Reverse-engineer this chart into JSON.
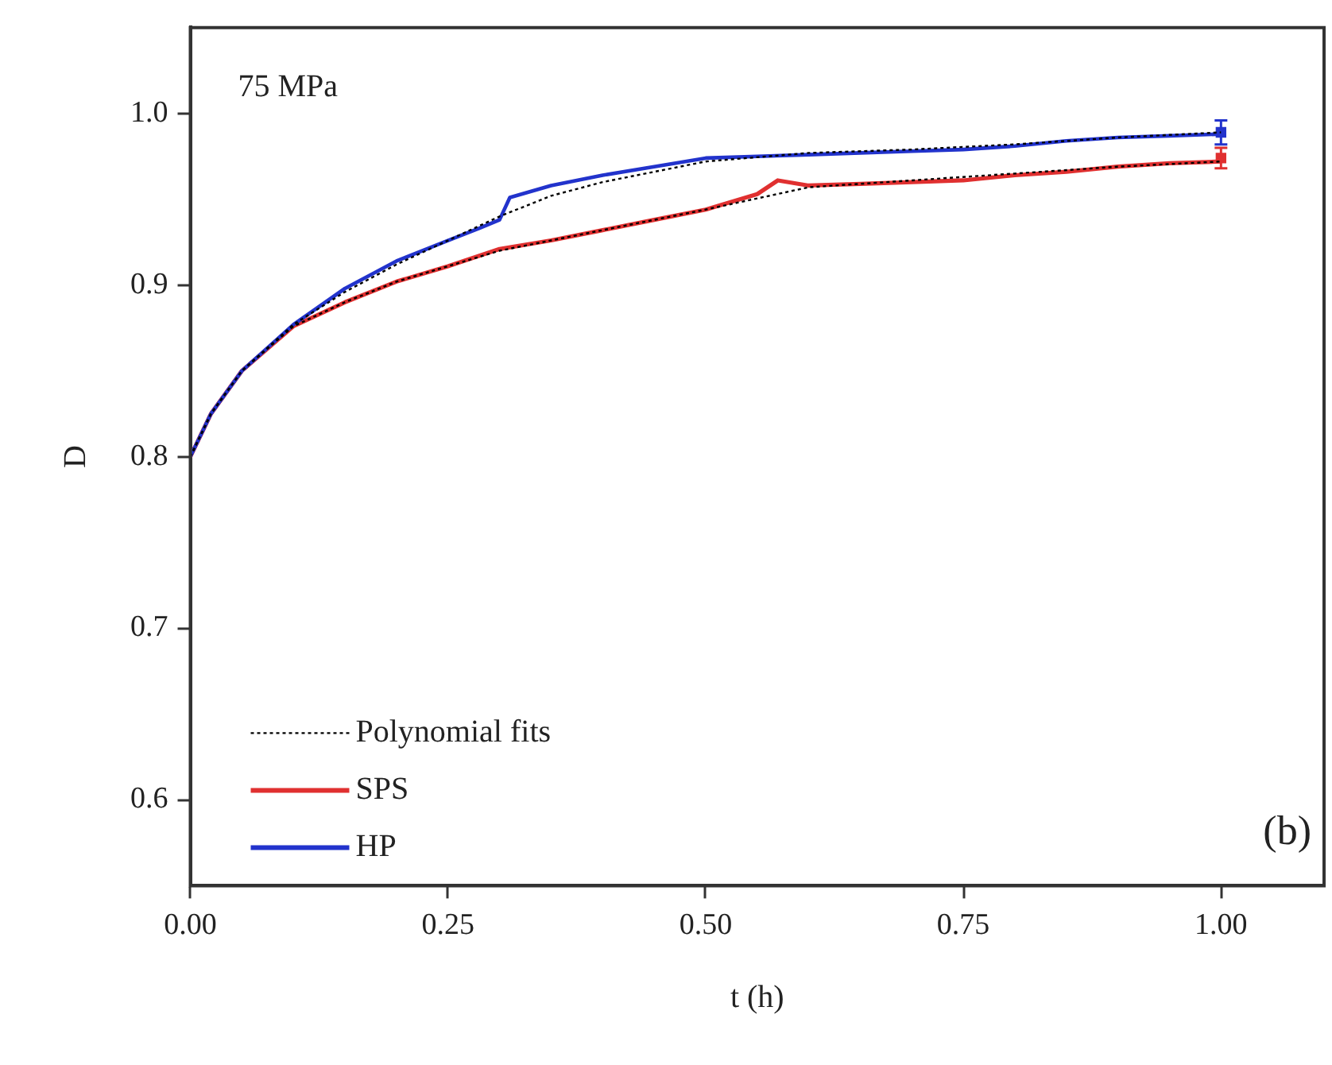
{
  "chart_data": {
    "type": "line",
    "xlabel": "t (h)",
    "ylabel": "D",
    "annotations": [
      "75 MPa",
      "(b)"
    ],
    "xlim": [
      0,
      1.1
    ],
    "ylim": [
      0.55,
      1.05
    ],
    "xticks": [
      {
        "value": 0,
        "label": "0.00"
      },
      0.25,
      {
        "value": 0.5,
        "label": "0.50"
      },
      0.75,
      {
        "value": 1,
        "label": "1.00"
      }
    ],
    "yticks": [
      0.6,
      0.7,
      0.8,
      0.9,
      {
        "value": 1,
        "label": "1.0"
      }
    ],
    "grid": false,
    "legend": "bottom left",
    "marker": "none",
    "series": [
      {
        "name": "Polynomial fits",
        "type": "line",
        "line_style": "dotted",
        "color": "#000000",
        "x": [
          0,
          0.02,
          0.05,
          0.1,
          0.15,
          0.2,
          0.25,
          0.3,
          0.35,
          0.4,
          0.5,
          0.6,
          0.7,
          0.8,
          0.9,
          1.0
        ],
        "values": [
          0.8,
          0.825,
          0.85,
          0.877,
          0.896,
          0.912,
          0.926,
          0.94,
          0.952,
          0.96,
          0.972,
          0.977,
          0.979,
          0.982,
          0.986,
          0.989
        ]
      },
      {
        "type": "line",
        "line_style": "dotted",
        "color": "#000000",
        "x": [
          0,
          0.02,
          0.05,
          0.1,
          0.15,
          0.2,
          0.25,
          0.3,
          0.35,
          0.4,
          0.5,
          0.6,
          0.7,
          0.8,
          0.9,
          1.0
        ],
        "values": [
          0.8,
          0.825,
          0.85,
          0.876,
          0.89,
          0.902,
          0.911,
          0.92,
          0.926,
          0.932,
          0.944,
          0.957,
          0.961,
          0.965,
          0.969,
          0.972
        ]
      },
      {
        "name": "SPS",
        "type": "line",
        "color": "#e03030",
        "x": [
          0,
          0.02,
          0.05,
          0.1,
          0.15,
          0.2,
          0.25,
          0.3,
          0.35,
          0.4,
          0.45,
          0.5,
          0.55,
          0.57,
          0.6,
          0.65,
          0.7,
          0.75,
          0.8,
          0.85,
          0.9,
          0.95,
          1.0
        ],
        "values": [
          0.8,
          0.825,
          0.85,
          0.876,
          0.89,
          0.902,
          0.911,
          0.921,
          0.926,
          0.932,
          0.938,
          0.944,
          0.953,
          0.961,
          0.958,
          0.959,
          0.96,
          0.961,
          0.964,
          0.966,
          0.969,
          0.971,
          0.972
        ]
      },
      {
        "name": "HP",
        "type": "line",
        "color": "#2233cc",
        "x": [
          0,
          0.02,
          0.05,
          0.1,
          0.15,
          0.2,
          0.25,
          0.28,
          0.3,
          0.31,
          0.35,
          0.4,
          0.45,
          0.5,
          0.55,
          0.6,
          0.65,
          0.7,
          0.75,
          0.8,
          0.85,
          0.9,
          0.95,
          1.0
        ],
        "values": [
          0.8,
          0.825,
          0.85,
          0.877,
          0.898,
          0.914,
          0.926,
          0.933,
          0.938,
          0.951,
          0.958,
          0.964,
          0.969,
          0.974,
          0.975,
          0.976,
          0.977,
          0.978,
          0.979,
          0.981,
          0.984,
          0.986,
          0.987,
          0.988
        ]
      },
      {
        "type": "scatter",
        "marker": "square",
        "color": "#e03030",
        "x": [
          1.0
        ],
        "values": [
          0.974
        ],
        "errors": [
          0.006
        ]
      },
      {
        "type": "scatter",
        "marker": "square",
        "color": "#2233cc",
        "x": [
          1.0
        ],
        "values": [
          0.989
        ],
        "errors": [
          0.007
        ]
      }
    ]
  }
}
